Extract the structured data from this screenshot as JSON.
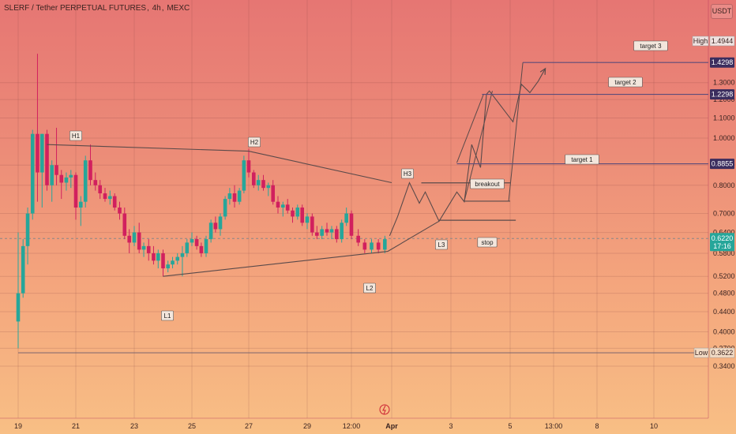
{
  "header": {
    "symbol": "SLERF / Tether PERPETUAL FUTURES",
    "interval": "4h",
    "exchange": "MEXC",
    "currency": "USDT"
  },
  "colors": {
    "up": "#26a69a",
    "down": "#d1205e",
    "pattern_line": "#5a4a4a",
    "target_line": "#5c4b7a"
  },
  "chart_data": {
    "type": "candlestick",
    "y_axis": {
      "scale": "log",
      "ylim": [
        0.33,
        1.56
      ],
      "ticks": [
        "0.3400",
        "0.3700",
        "0.4000",
        "0.4400",
        "0.4800",
        "0.5200",
        "0.5800",
        "0.6400",
        "0.7000",
        "0.8000",
        "0.8800",
        "1.0000",
        "1.1000",
        "1.2000",
        "1.3000"
      ]
    },
    "x_axis": {
      "ticks": [
        "19",
        "21",
        "23",
        "25",
        "27",
        "29",
        "12:00",
        "Apr",
        "3",
        "5",
        "13:00",
        "8",
        "10"
      ]
    },
    "price_tags": {
      "high": {
        "label": "High",
        "value": "1.4944"
      },
      "target3": {
        "value": "1.4298"
      },
      "target2": {
        "value": "1.2298"
      },
      "target1": {
        "value": "0.8855"
      },
      "last": {
        "value": "0.6220",
        "countdown": "17:16"
      },
      "low": {
        "label": "Low",
        "value": "0.3622"
      }
    },
    "annotations": [
      "H1",
      "H2",
      "H3",
      "L1",
      "L2",
      "L3",
      "breakout",
      "stop",
      "target 1",
      "target 2",
      "target 3"
    ],
    "candles": [
      {
        "t": 19.0,
        "o": 0.42,
        "h": 0.64,
        "l": 0.37,
        "c": 0.48
      },
      {
        "t": 19.17,
        "o": 0.48,
        "h": 0.62,
        "l": 0.47,
        "c": 0.6
      },
      {
        "t": 19.33,
        "o": 0.6,
        "h": 0.72,
        "l": 0.55,
        "c": 0.7
      },
      {
        "t": 19.5,
        "o": 0.7,
        "h": 1.04,
        "l": 0.68,
        "c": 1.02
      },
      {
        "t": 19.67,
        "o": 1.02,
        "h": 1.49,
        "l": 0.74,
        "c": 0.85
      },
      {
        "t": 19.83,
        "o": 0.85,
        "h": 1.02,
        "l": 0.72,
        "c": 1.02
      },
      {
        "t": 20.0,
        "o": 1.02,
        "h": 1.04,
        "l": 0.78,
        "c": 0.8
      },
      {
        "t": 20.17,
        "o": 0.8,
        "h": 0.9,
        "l": 0.74,
        "c": 0.88
      },
      {
        "t": 20.33,
        "o": 0.88,
        "h": 1.05,
        "l": 0.8,
        "c": 0.84
      },
      {
        "t": 20.5,
        "o": 0.84,
        "h": 0.86,
        "l": 0.75,
        "c": 0.81
      },
      {
        "t": 20.67,
        "o": 0.81,
        "h": 0.85,
        "l": 0.78,
        "c": 0.83
      },
      {
        "t": 20.83,
        "o": 0.83,
        "h": 0.86,
        "l": 0.79,
        "c": 0.84
      },
      {
        "t": 21.0,
        "o": 0.84,
        "h": 0.85,
        "l": 0.68,
        "c": 0.72
      },
      {
        "t": 21.17,
        "o": 0.72,
        "h": 0.76,
        "l": 0.66,
        "c": 0.74
      },
      {
        "t": 21.33,
        "o": 0.74,
        "h": 0.92,
        "l": 0.72,
        "c": 0.9
      },
      {
        "t": 21.5,
        "o": 0.9,
        "h": 0.97,
        "l": 0.8,
        "c": 0.82
      },
      {
        "t": 21.67,
        "o": 0.82,
        "h": 0.85,
        "l": 0.78,
        "c": 0.8
      },
      {
        "t": 21.83,
        "o": 0.8,
        "h": 0.82,
        "l": 0.75,
        "c": 0.77
      },
      {
        "t": 22.0,
        "o": 0.77,
        "h": 0.79,
        "l": 0.74,
        "c": 0.75
      },
      {
        "t": 22.17,
        "o": 0.75,
        "h": 0.78,
        "l": 0.73,
        "c": 0.76
      },
      {
        "t": 22.33,
        "o": 0.76,
        "h": 0.77,
        "l": 0.71,
        "c": 0.72
      },
      {
        "t": 22.5,
        "o": 0.72,
        "h": 0.74,
        "l": 0.68,
        "c": 0.7
      },
      {
        "t": 22.67,
        "o": 0.7,
        "h": 0.72,
        "l": 0.62,
        "c": 0.63
      },
      {
        "t": 22.83,
        "o": 0.63,
        "h": 0.65,
        "l": 0.58,
        "c": 0.61
      },
      {
        "t": 23.0,
        "o": 0.61,
        "h": 0.66,
        "l": 0.6,
        "c": 0.64
      },
      {
        "t": 23.17,
        "o": 0.64,
        "h": 0.67,
        "l": 0.58,
        "c": 0.59
      },
      {
        "t": 23.33,
        "o": 0.59,
        "h": 0.61,
        "l": 0.57,
        "c": 0.6
      },
      {
        "t": 23.5,
        "o": 0.6,
        "h": 0.62,
        "l": 0.56,
        "c": 0.58
      },
      {
        "t": 23.67,
        "o": 0.58,
        "h": 0.6,
        "l": 0.55,
        "c": 0.56
      },
      {
        "t": 23.83,
        "o": 0.56,
        "h": 0.59,
        "l": 0.54,
        "c": 0.58
      },
      {
        "t": 24.0,
        "o": 0.58,
        "h": 0.59,
        "l": 0.52,
        "c": 0.54
      },
      {
        "t": 24.17,
        "o": 0.54,
        "h": 0.56,
        "l": 0.53,
        "c": 0.55
      },
      {
        "t": 24.33,
        "o": 0.55,
        "h": 0.57,
        "l": 0.54,
        "c": 0.56
      },
      {
        "t": 24.5,
        "o": 0.56,
        "h": 0.58,
        "l": 0.55,
        "c": 0.57
      },
      {
        "t": 24.67,
        "o": 0.57,
        "h": 0.6,
        "l": 0.52,
        "c": 0.58
      },
      {
        "t": 24.83,
        "o": 0.58,
        "h": 0.62,
        "l": 0.57,
        "c": 0.61
      },
      {
        "t": 25.0,
        "o": 0.61,
        "h": 0.64,
        "l": 0.6,
        "c": 0.62
      },
      {
        "t": 25.17,
        "o": 0.62,
        "h": 0.63,
        "l": 0.59,
        "c": 0.6
      },
      {
        "t": 25.33,
        "o": 0.6,
        "h": 0.61,
        "l": 0.57,
        "c": 0.58
      },
      {
        "t": 25.5,
        "o": 0.58,
        "h": 0.63,
        "l": 0.57,
        "c": 0.62
      },
      {
        "t": 25.67,
        "o": 0.62,
        "h": 0.68,
        "l": 0.61,
        "c": 0.67
      },
      {
        "t": 25.83,
        "o": 0.67,
        "h": 0.69,
        "l": 0.64,
        "c": 0.65
      },
      {
        "t": 26.0,
        "o": 0.65,
        "h": 0.7,
        "l": 0.63,
        "c": 0.69
      },
      {
        "t": 26.17,
        "o": 0.69,
        "h": 0.76,
        "l": 0.68,
        "c": 0.75
      },
      {
        "t": 26.33,
        "o": 0.75,
        "h": 0.79,
        "l": 0.73,
        "c": 0.77
      },
      {
        "t": 26.5,
        "o": 0.77,
        "h": 0.8,
        "l": 0.72,
        "c": 0.74
      },
      {
        "t": 26.67,
        "o": 0.74,
        "h": 0.79,
        "l": 0.73,
        "c": 0.78
      },
      {
        "t": 26.83,
        "o": 0.78,
        "h": 0.92,
        "l": 0.77,
        "c": 0.9
      },
      {
        "t": 27.0,
        "o": 0.9,
        "h": 0.95,
        "l": 0.83,
        "c": 0.85
      },
      {
        "t": 27.17,
        "o": 0.85,
        "h": 0.86,
        "l": 0.79,
        "c": 0.8
      },
      {
        "t": 27.33,
        "o": 0.8,
        "h": 0.84,
        "l": 0.78,
        "c": 0.82
      },
      {
        "t": 27.5,
        "o": 0.82,
        "h": 0.84,
        "l": 0.78,
        "c": 0.79
      },
      {
        "t": 27.67,
        "o": 0.79,
        "h": 0.81,
        "l": 0.76,
        "c": 0.8
      },
      {
        "t": 27.83,
        "o": 0.8,
        "h": 0.82,
        "l": 0.73,
        "c": 0.74
      },
      {
        "t": 28.0,
        "o": 0.74,
        "h": 0.76,
        "l": 0.7,
        "c": 0.72
      },
      {
        "t": 28.17,
        "o": 0.72,
        "h": 0.74,
        "l": 0.69,
        "c": 0.73
      },
      {
        "t": 28.33,
        "o": 0.73,
        "h": 0.75,
        "l": 0.7,
        "c": 0.71
      },
      {
        "t": 28.5,
        "o": 0.71,
        "h": 0.72,
        "l": 0.67,
        "c": 0.69
      },
      {
        "t": 28.67,
        "o": 0.69,
        "h": 0.73,
        "l": 0.68,
        "c": 0.72
      },
      {
        "t": 28.83,
        "o": 0.72,
        "h": 0.73,
        "l": 0.66,
        "c": 0.67
      },
      {
        "t": 29.0,
        "o": 0.67,
        "h": 0.7,
        "l": 0.65,
        "c": 0.69
      },
      {
        "t": 29.17,
        "o": 0.69,
        "h": 0.7,
        "l": 0.63,
        "c": 0.64
      },
      {
        "t": 29.33,
        "o": 0.64,
        "h": 0.66,
        "l": 0.62,
        "c": 0.63
      },
      {
        "t": 29.5,
        "o": 0.63,
        "h": 0.66,
        "l": 0.62,
        "c": 0.65
      },
      {
        "t": 29.67,
        "o": 0.65,
        "h": 0.67,
        "l": 0.63,
        "c": 0.64
      },
      {
        "t": 29.83,
        "o": 0.64,
        "h": 0.66,
        "l": 0.62,
        "c": 0.65
      },
      {
        "t": 30.0,
        "o": 0.65,
        "h": 0.66,
        "l": 0.61,
        "c": 0.62
      },
      {
        "t": 30.17,
        "o": 0.62,
        "h": 0.68,
        "l": 0.61,
        "c": 0.67
      },
      {
        "t": 30.33,
        "o": 0.67,
        "h": 0.72,
        "l": 0.66,
        "c": 0.7
      },
      {
        "t": 30.5,
        "o": 0.7,
        "h": 0.71,
        "l": 0.62,
        "c": 0.63
      },
      {
        "t": 30.67,
        "o": 0.63,
        "h": 0.65,
        "l": 0.6,
        "c": 0.61
      },
      {
        "t": 30.83,
        "o": 0.61,
        "h": 0.62,
        "l": 0.58,
        "c": 0.59
      },
      {
        "t": 31.0,
        "o": 0.59,
        "h": 0.62,
        "l": 0.58,
        "c": 0.61
      },
      {
        "t": 31.17,
        "o": 0.61,
        "h": 0.62,
        "l": 0.58,
        "c": 0.59
      },
      {
        "t": 31.33,
        "o": 0.59,
        "h": 0.63,
        "l": 0.58,
        "c": 0.62
      }
    ],
    "pattern_lines": [
      [
        [
          20.0,
          0.97
        ],
        [
          27.0,
          0.94
        ],
        [
          31.5,
          0.81
        ]
      ],
      [
        [
          24.0,
          0.52
        ],
        [
          31.4,
          0.585
        ]
      ],
      [
        [
          31.4,
          0.585
        ],
        [
          32.7,
          0.675
        ]
      ],
      [
        [
          31.45,
          0.63
        ],
        [
          31.65,
          0.69
        ],
        [
          31.95,
          0.81
        ],
        [
          32.2,
          0.735
        ],
        [
          32.35,
          0.775
        ],
        [
          32.7,
          0.675
        ],
        [
          33.2,
          0.775
        ],
        [
          33.45,
          0.74
        ],
        [
          33.7,
          0.97
        ],
        [
          34.0,
          0.87
        ],
        [
          34.2,
          1.23
        ],
        [
          34.3,
          1.25
        ],
        [
          35.1,
          1.08
        ],
        [
          35.4,
          1.29
        ],
        [
          35.7,
          1.24
        ],
        [
          36.0,
          1.31
        ],
        [
          36.25,
          1.39
        ]
      ]
    ],
    "projection_lines": [
      [
        [
          33.2,
          0.89
        ],
        [
          34.1,
          1.23
        ]
      ],
      [
        [
          33.45,
          0.742
        ],
        [
          34.4,
          1.25
        ]
      ],
      [
        [
          34.95,
          0.742
        ],
        [
          35.45,
          1.43
        ]
      ]
    ],
    "levels": [
      {
        "name": "target 3",
        "y": 1.4298,
        "x0": 35.45,
        "x1": 37.8
      },
      {
        "name": "target 2",
        "y": 1.2298,
        "x0": 34.05,
        "x1": 37.8
      },
      {
        "name": "target 1",
        "y": 0.8855,
        "x0": 33.2,
        "x1": 37.8
      },
      {
        "name": "breakout",
        "y": 0.809,
        "x0": 32.25,
        "x1": 35.0
      },
      {
        "name": "level",
        "y": 0.742,
        "x0": 33.45,
        "x1": 35.0
      },
      {
        "name": "stop",
        "y": 0.678,
        "x0": 32.7,
        "x1": 35.2
      },
      {
        "name": "low",
        "y": 0.3622,
        "x0": 19.0,
        "x1": 37.8
      }
    ]
  }
}
